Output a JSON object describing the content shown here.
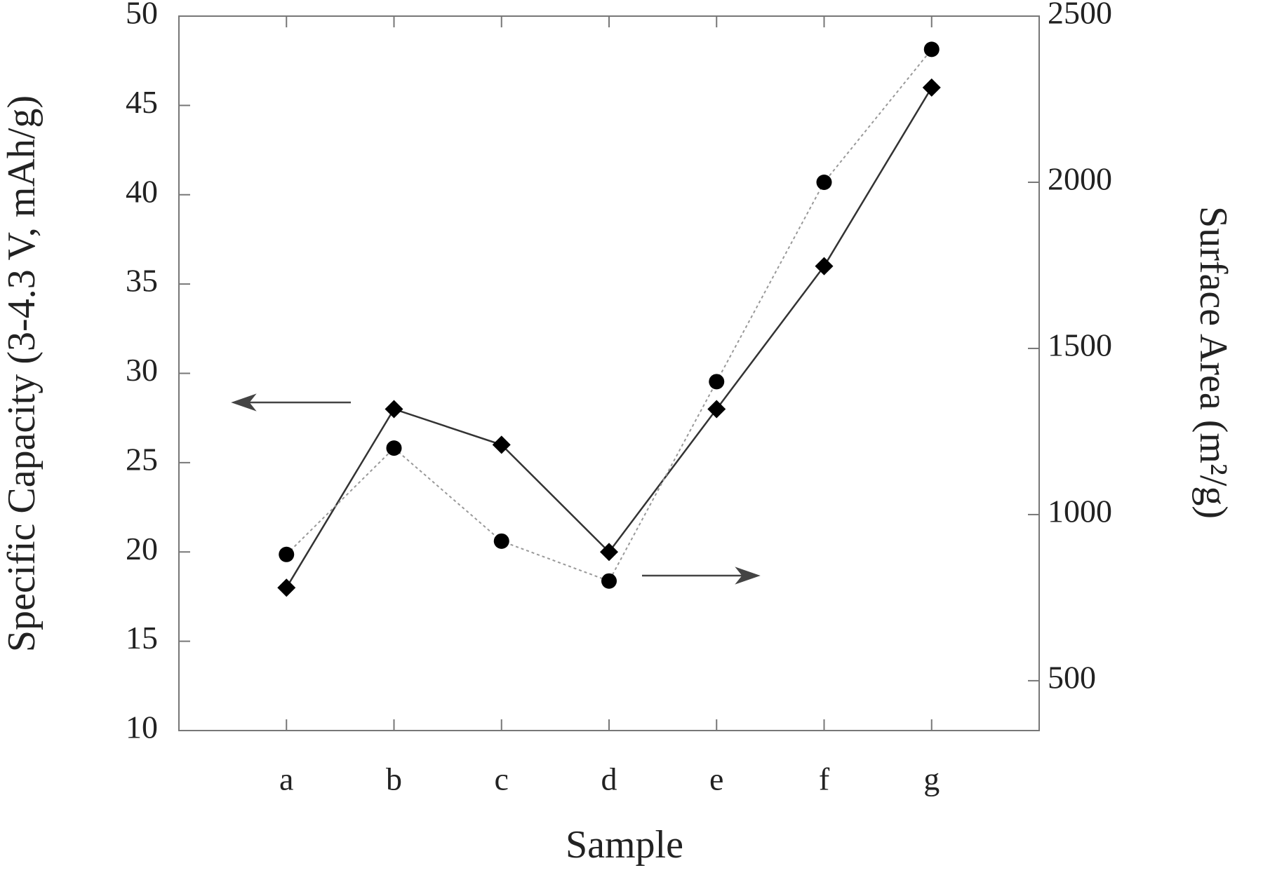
{
  "chart_data": {
    "type": "line",
    "x_label": "Sample",
    "y_label": "Specific Capacity (3-4.3 V, mAh/g)",
    "y2_label": "Surface Area (m²/g)",
    "categories": [
      "a",
      "b",
      "c",
      "d",
      "e",
      "f",
      "g"
    ],
    "series": [
      {
        "values": [
          18,
          28,
          26,
          20,
          28,
          36,
          46
        ],
        "color": "#000000",
        "marker": "diamond",
        "linestyle": "solid",
        "axis": "y"
      },
      {
        "values": [
          880,
          1200,
          920,
          800,
          1400,
          2000,
          2400
        ],
        "color": "#000000",
        "marker": "circle",
        "linestyle": "dotted",
        "axis": "y2"
      }
    ],
    "ylim": [
      10,
      50
    ],
    "yticks": [
      10,
      15,
      20,
      25,
      30,
      35,
      40,
      45,
      50
    ],
    "y2lim": [
      350,
      2500
    ],
    "y2ticks": [
      500,
      1000,
      1500,
      2000,
      2500
    ],
    "grid": false
  }
}
